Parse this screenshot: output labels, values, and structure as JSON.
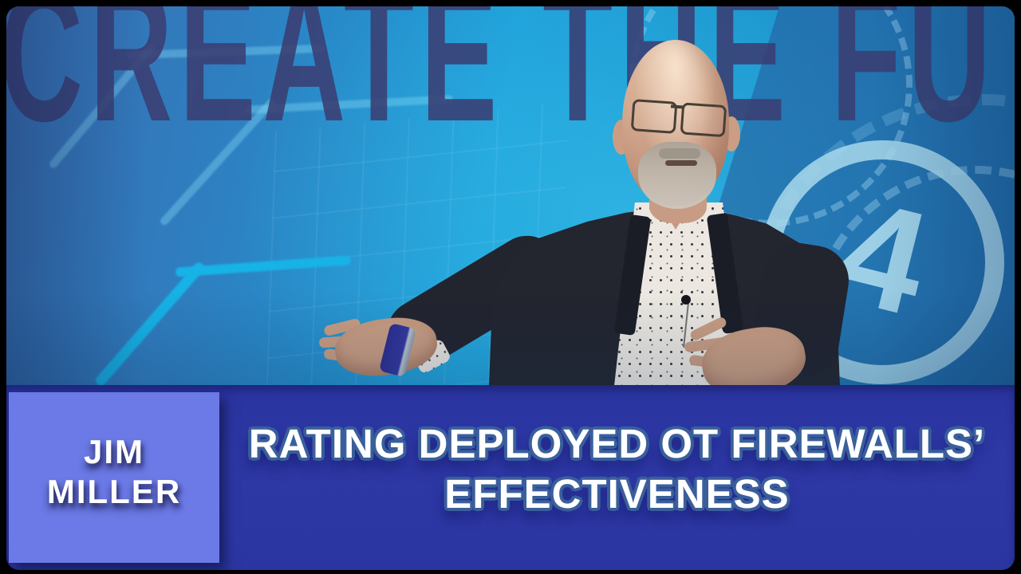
{
  "backdrop": {
    "partial_text": "CREATE THE FU",
    "logo_glyph": "4"
  },
  "lower_third": {
    "name_line1": "JIM",
    "name_line2": "MILLER",
    "title_line1": "RATING DEPLOYED OT FIREWALLS’",
    "title_line2": "EFFECTIVENESS"
  },
  "colors": {
    "banner_blue": "#2e38a5",
    "name_box_periwinkle": "#6b7ae6",
    "title_outline_blue": "#3a5f9b",
    "backdrop_cyan": "#1d9ed8",
    "backdrop_steel_blue": "#3a6db2",
    "backdrop_letters_navy": "#3a3e72",
    "logo_light_blue": "#a8d8eb",
    "blazer_navy": "#23252f"
  }
}
